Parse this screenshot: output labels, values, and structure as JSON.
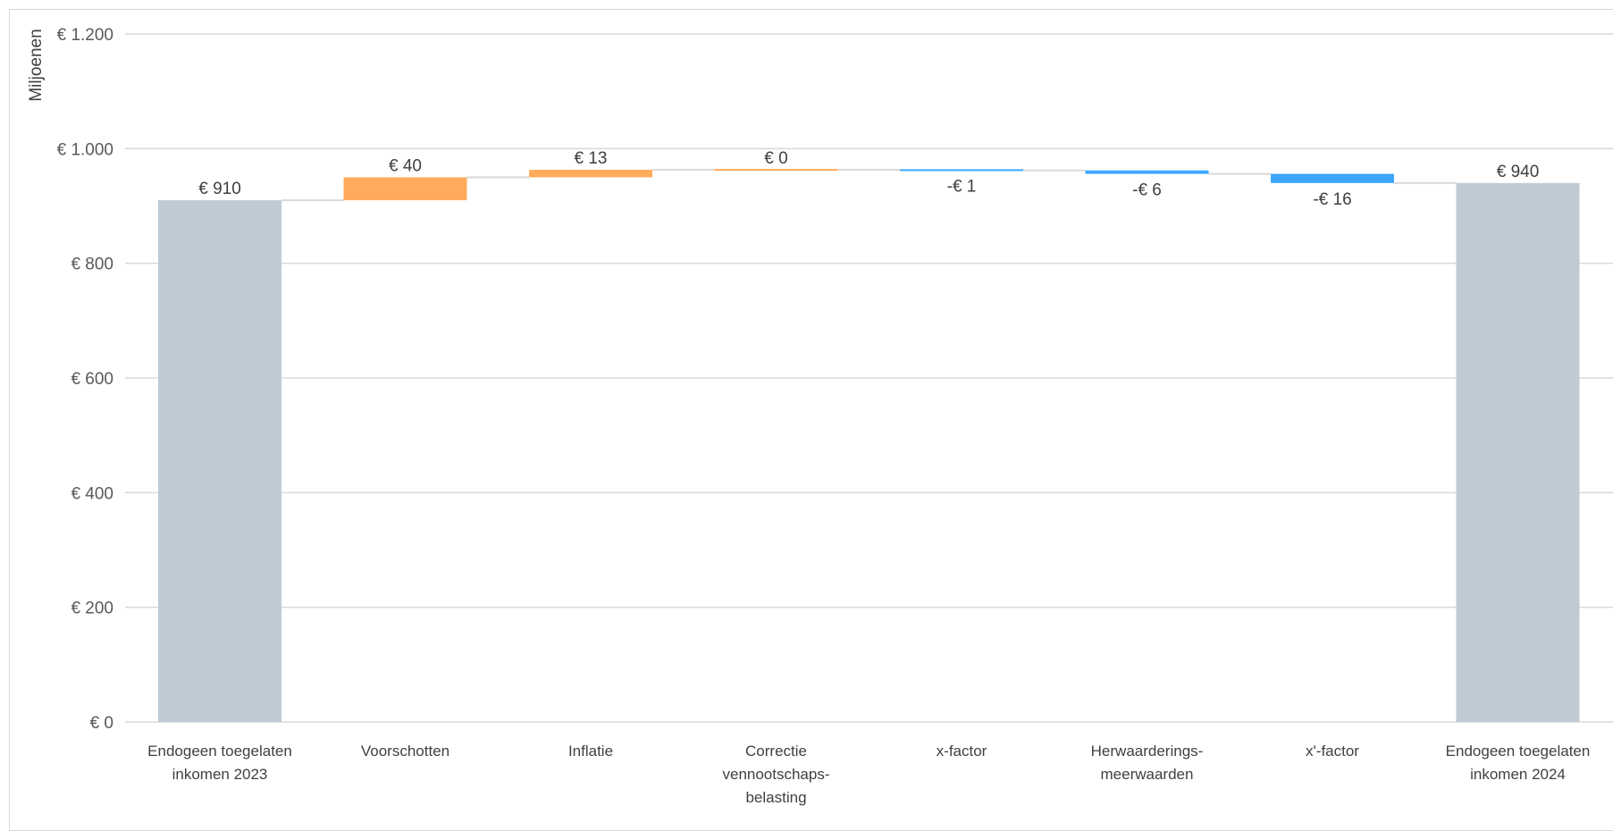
{
  "chart_data": {
    "type": "bar",
    "subtype": "waterfall",
    "ylabel": "Miljoenen",
    "ylim": [
      0,
      1200
    ],
    "yticks": [
      0,
      200,
      400,
      600,
      800,
      1000,
      1200
    ],
    "ytick_labels": [
      "€ 0",
      "€ 200",
      "€ 400",
      "€ 600",
      "€ 800",
      "€ 1.000",
      "€ 1.200"
    ],
    "grid": true,
    "categories": [
      [
        "Endogeen toegelaten",
        "inkomen 2023"
      ],
      [
        "Voorschotten"
      ],
      [
        "Inflatie"
      ],
      [
        "Correctie",
        "vennootschaps-",
        "belasting"
      ],
      [
        "x-factor"
      ],
      [
        "Herwaarderings-",
        "meerwaarden"
      ],
      [
        "x'-factor"
      ],
      [
        "Endogeen toegelaten",
        "inkomen 2024"
      ]
    ],
    "values": [
      910,
      40,
      13,
      0,
      -1,
      -6,
      -16,
      940
    ],
    "kinds": [
      "total",
      "delta",
      "delta",
      "delta",
      "delta",
      "delta",
      "delta",
      "total"
    ],
    "data_labels": [
      "€ 910",
      "€ 40",
      "€ 13",
      "€ 0",
      "-€ 1",
      "-€ 6",
      "-€ 16",
      "€ 940"
    ],
    "colors": {
      "total": "#bfcbd4",
      "increase": "#ffab5c",
      "decrease": "#3aa6ff",
      "grid": "#d9d9d9",
      "connector": "#d9d9d9"
    }
  }
}
